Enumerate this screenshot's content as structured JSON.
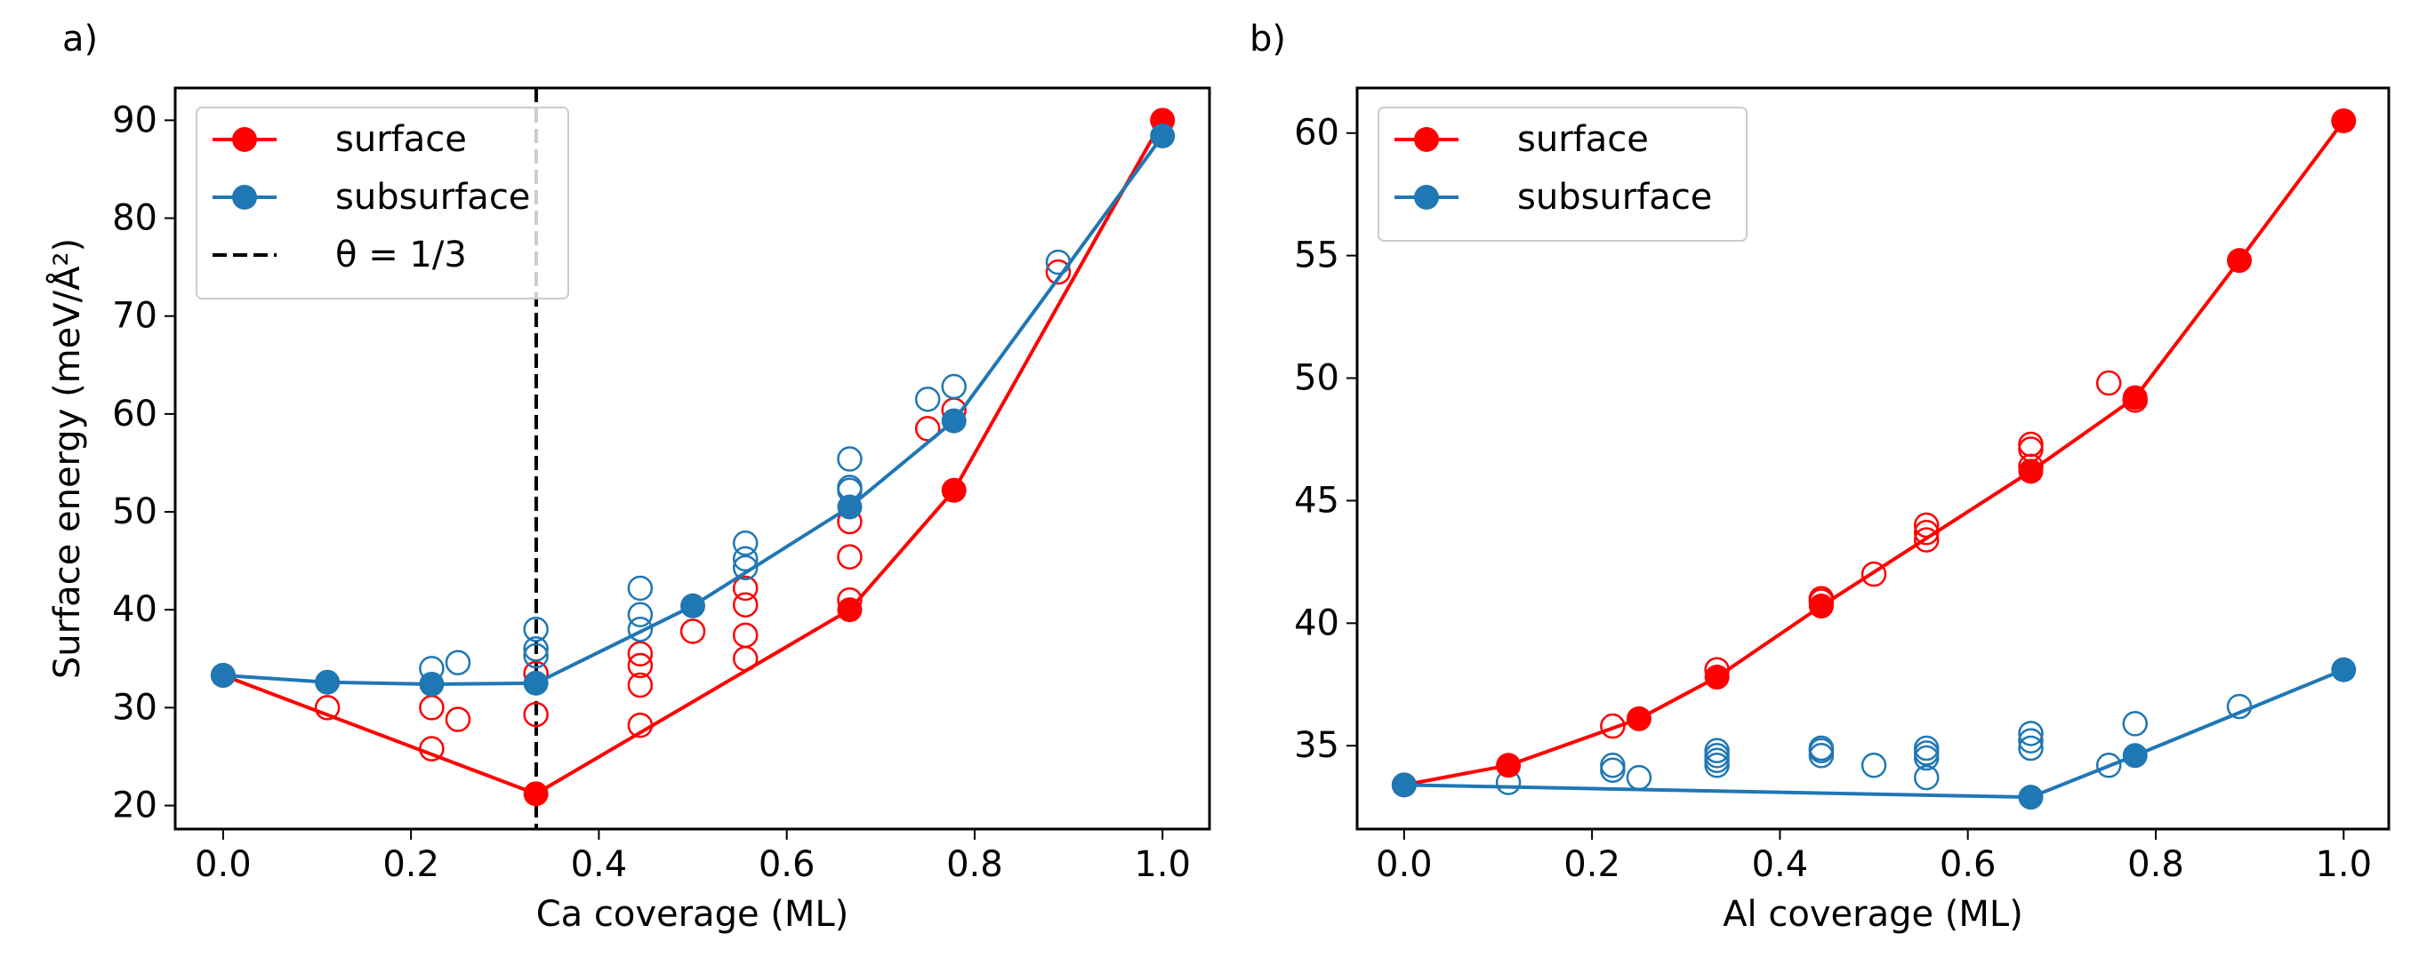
{
  "chart_data": [
    {
      "type": "line",
      "panel": "a)",
      "xlabel": "Ca coverage (ML)",
      "ylabel": "Surface energy (meV/Å²)",
      "xlim": [
        -0.051,
        1.05
      ],
      "ylim": [
        17.6,
        93.3
      ],
      "xticks": [
        {
          "value": 0,
          "label": "0.0"
        },
        {
          "value": 0.2,
          "label": "0.2"
        },
        {
          "value": 0.4,
          "label": "0.4"
        },
        {
          "value": 0.6,
          "label": "0.6"
        },
        {
          "value": 0.8,
          "label": "0.8"
        },
        {
          "value": 1,
          "label": "1.0"
        }
      ],
      "yticks": [
        20,
        30,
        40,
        50,
        60,
        70,
        80,
        90
      ],
      "legend": "upper left",
      "series": [
        {
          "name": "surface",
          "color": "#ff0000",
          "x": [
            0,
            0.333,
            0.667,
            0.778,
            1.0
          ],
          "values": [
            33.3,
            21.2,
            40,
            52.2,
            90
          ]
        },
        {
          "name": "subsurface",
          "color": "#1f77b4",
          "x": [
            0,
            0.111,
            0.222,
            0.333,
            0.5,
            0.667,
            0.778,
            1.0
          ],
          "values": [
            33.3,
            32.6,
            32.4,
            32.5,
            40.4,
            50.5,
            59.3,
            88.4
          ]
        }
      ],
      "points": [
        {
          "color": "#ff0000",
          "x": [
            0.111,
            0.222,
            0.222,
            0.25,
            0.333,
            0.333,
            0.444,
            0.444,
            0.444,
            0.444,
            0.5,
            0.556,
            0.556,
            0.556,
            0.556,
            0.667,
            0.667,
            0.667,
            0.75,
            0.778,
            0.889
          ],
          "values": [
            30,
            30,
            25.8,
            28.8,
            29.3,
            33.5,
            28.2,
            32.3,
            34.3,
            35.5,
            37.8,
            35,
            37.4,
            40.5,
            42.2,
            41,
            45.4,
            49,
            58.5,
            60.4,
            74.5
          ]
        },
        {
          "color": "#1f77b4",
          "x": [
            0.222,
            0.25,
            0.333,
            0.333,
            0.333,
            0.444,
            0.444,
            0.444,
            0.556,
            0.556,
            0.556,
            0.667,
            0.667,
            0.667,
            0.75,
            0.778,
            0.889
          ],
          "values": [
            34,
            34.6,
            35.3,
            36,
            38,
            38,
            39.5,
            42.2,
            44.3,
            45.2,
            46.8,
            52.2,
            52.5,
            55.4,
            61.5,
            62.8,
            75.5
          ]
        }
      ],
      "vline": {
        "x": 0.3333,
        "label": "θ = 1/3",
        "color": "#000000"
      }
    },
    {
      "type": "line",
      "panel": "b)",
      "xlabel": "Al coverage (ML)",
      "xlim": [
        -0.05,
        1.048
      ],
      "ylim": [
        31.6,
        61.84
      ],
      "xticks": [
        {
          "value": 0,
          "label": "0.0"
        },
        {
          "value": 0.2,
          "label": "0.2"
        },
        {
          "value": 0.4,
          "label": "0.4"
        },
        {
          "value": 0.6,
          "label": "0.6"
        },
        {
          "value": 0.8,
          "label": "0.8"
        },
        {
          "value": 1,
          "label": "1.0"
        }
      ],
      "yticks": [
        35,
        40,
        45,
        50,
        55,
        60
      ],
      "legend": "upper left",
      "series": [
        {
          "name": "surface",
          "color": "#ff0000",
          "x": [
            0,
            0.111,
            0.25,
            0.333,
            0.444,
            0.667,
            0.778,
            0.889,
            1.0
          ],
          "values": [
            33.4,
            34.2,
            36.1,
            37.8,
            40.7,
            46.2,
            49.2,
            54.8,
            60.5
          ]
        },
        {
          "name": "subsurface",
          "color": "#1f77b4",
          "x": [
            0,
            0.667,
            0.778,
            1.0
          ],
          "values": [
            33.4,
            32.9,
            34.6,
            38.1
          ]
        }
      ],
      "points": [
        {
          "color": "#ff0000",
          "x": [
            0.222,
            0.333,
            0.444,
            0.444,
            0.5,
            0.556,
            0.556,
            0.556,
            0.667,
            0.667,
            0.667,
            0.75,
            0.778
          ],
          "values": [
            35.8,
            38.1,
            40.9,
            41,
            42,
            43.4,
            43.7,
            44,
            46.4,
            47.1,
            47.3,
            49.8,
            49.1
          ]
        },
        {
          "color": "#1f77b4",
          "x": [
            0.111,
            0.222,
            0.222,
            0.25,
            0.333,
            0.333,
            0.333,
            0.333,
            0.444,
            0.444,
            0.444,
            0.5,
            0.556,
            0.556,
            0.556,
            0.556,
            0.667,
            0.667,
            0.667,
            0.75,
            0.778,
            0.889
          ],
          "values": [
            33.5,
            34,
            34.2,
            33.7,
            34.2,
            34.4,
            34.6,
            34.8,
            34.6,
            34.8,
            34.9,
            34.2,
            33.7,
            34.5,
            34.7,
            34.9,
            34.9,
            35.2,
            35.5,
            34.2,
            35.9,
            36.6
          ]
        }
      ]
    }
  ]
}
